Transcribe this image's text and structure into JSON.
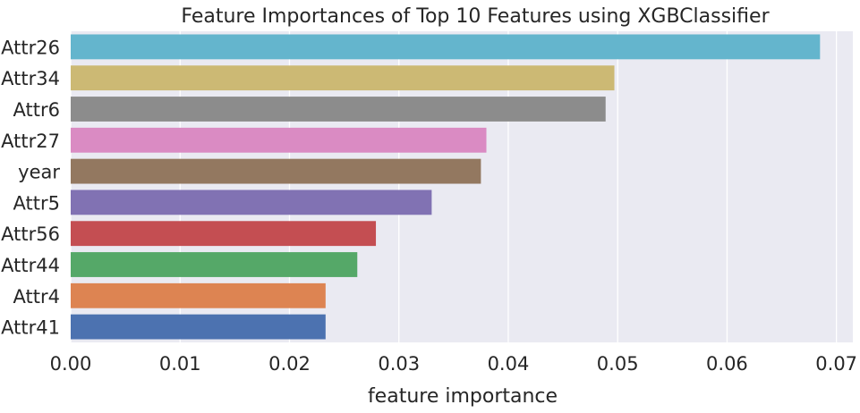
{
  "chart_data": {
    "type": "bar",
    "orientation": "horizontal",
    "title": "Feature Importances of Top 10 Features using XGBClassifier",
    "xlabel": "feature importance",
    "ylabel": "",
    "xlim": [
      0,
      0.0715
    ],
    "x_ticks": [
      "0.00",
      "0.01",
      "0.02",
      "0.03",
      "0.04",
      "0.05",
      "0.06",
      "0.07"
    ],
    "x_tick_values": [
      0,
      0.01,
      0.02,
      0.03,
      0.04,
      0.05,
      0.06,
      0.07
    ],
    "grid": true,
    "categories": [
      "Attr26",
      "Attr34",
      "Attr6",
      "Attr27",
      "year",
      "Attr5",
      "Attr56",
      "Attr44",
      "Attr4",
      "Attr41"
    ],
    "values": [
      0.0685,
      0.0497,
      0.0489,
      0.038,
      0.0375,
      0.033,
      0.0279,
      0.0262,
      0.0233,
      0.0233
    ],
    "colors": [
      "#64b5cd",
      "#ccb974",
      "#8c8c8c",
      "#da8bc3",
      "#937860",
      "#8172b3",
      "#c44e52",
      "#55a868",
      "#dd8452",
      "#4c72b0"
    ],
    "background": "#eaeaf2",
    "gridline_color": "#ffffff"
  }
}
